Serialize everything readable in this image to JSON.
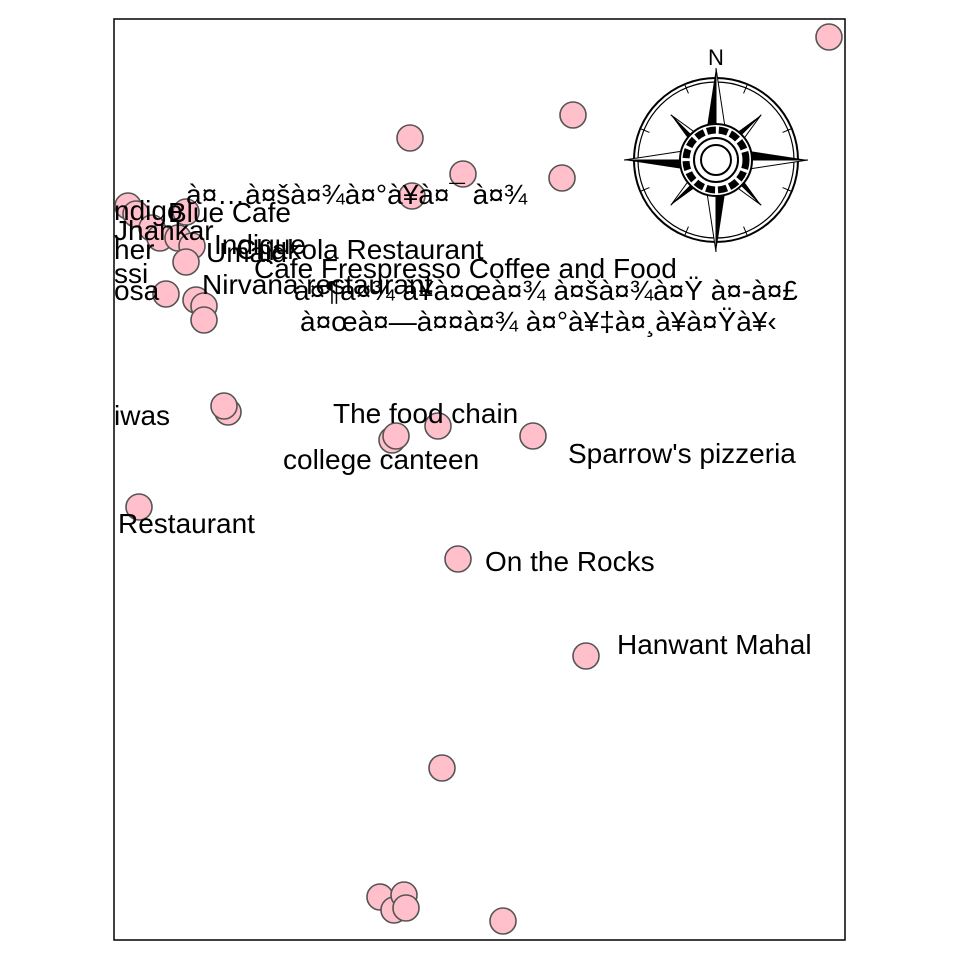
{
  "compass": {
    "north_label": "N",
    "icon": "compass-rose-icon"
  },
  "colors": {
    "point_fill": "#ffc0cb",
    "point_stroke": "#555555",
    "frame": "#000000",
    "background": "#ffffff"
  },
  "labels": [
    "ndigo",
    "à¤…à¤šà¤¾à¤°à¥à¤¯ à¤¾",
    "Blue Cafe",
    "Jhankar",
    "her",
    "Indique",
    "Umaid",
    "Chakola Restaurant",
    "Cafe Frespresso Coffee and Food",
    "ssi",
    "Nirvana restaurant",
    "osa",
    "à¤¶à¤¾ à¥à¤œà¤¾ à¤šà¤¾à¤Ÿ à¤-à¤£",
    "à¤œà¤—à¤¤à¤¾ à¤°à¥‡à¤¸à¥à¤Ÿà¥‹",
    "iwas",
    "The food chain",
    "college canteen",
    "Sparrow's pizzeria",
    "Restaurant",
    "On the Rocks",
    "Hanwant Mahal"
  ]
}
